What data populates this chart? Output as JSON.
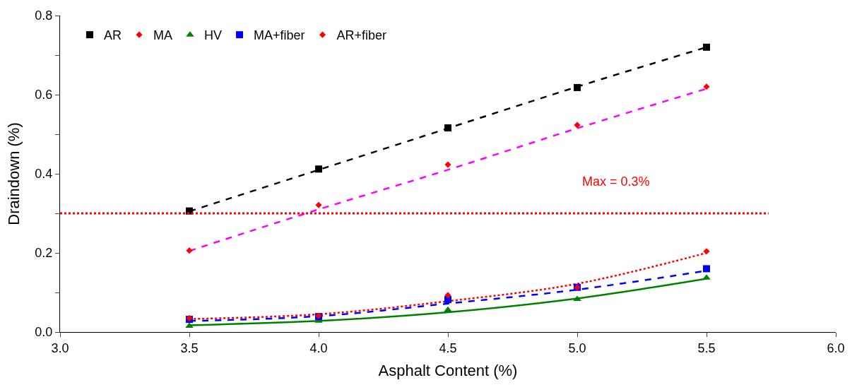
{
  "chart_data": {
    "type": "scatter",
    "xlabel": "Asphalt Content (%)",
    "ylabel": "Draindown (%)",
    "xlim": [
      3.0,
      6.0
    ],
    "ylim": [
      0,
      0.8
    ],
    "xticks": [
      {
        "value": 3.0,
        "label": "3.0"
      },
      {
        "value": 3.5,
        "label": "3.5"
      },
      {
        "value": 4.0,
        "label": "4.0"
      },
      {
        "value": 4.5,
        "label": "4.5"
      },
      {
        "value": 5.0,
        "label": "5.0"
      },
      {
        "value": 5.5,
        "label": "5.5"
      },
      {
        "value": 6.0,
        "label": "6.0"
      }
    ],
    "yticks": [
      {
        "value": 0,
        "label": "0.0"
      },
      {
        "value": 0.1,
        "label": null
      },
      {
        "value": 0.2,
        "label": "0.2"
      },
      {
        "value": 0.3,
        "label": null
      },
      {
        "value": 0.4,
        "label": "0.4"
      },
      {
        "value": 0.5,
        "label": null
      },
      {
        "value": 0.6,
        "label": "0.6"
      },
      {
        "value": 0.7,
        "label": null
      },
      {
        "value": 0.8,
        "label": "0.8"
      }
    ],
    "x": [
      3.5,
      4.0,
      4.5,
      5.0,
      5.5
    ],
    "legend": "top left",
    "series": [
      {
        "name": "AR",
        "color": "#000000",
        "marker": "square",
        "values": [
          0.306,
          0.412,
          0.516,
          0.618,
          0.72
        ]
      },
      {
        "name": "MA",
        "color": "#ff0000",
        "marker": "diamond",
        "values": [
          0.206,
          0.321,
          0.423,
          0.523,
          0.62
        ]
      },
      {
        "name": "HV",
        "color": "#008000",
        "marker": "triangle",
        "values": [
          0.015,
          0.028,
          0.056,
          0.083,
          0.137
        ]
      },
      {
        "name": "MA+fiber",
        "color": "#0000ff",
        "marker": "square",
        "values": [
          0.032,
          0.039,
          0.082,
          0.113,
          0.16
        ]
      },
      {
        "name": "AR+fiber",
        "color": "#ff0000",
        "marker": "diamond",
        "values": [
          0.035,
          0.041,
          0.093,
          0.113,
          0.204
        ]
      },
      {
        "type": "line",
        "color": "#000000",
        "line_style": "dashed",
        "values": [
          0.305,
          0.41,
          0.515,
          0.62,
          0.72
        ]
      },
      {
        "type": "line",
        "color": "#ff00ff",
        "line_style": "dashed",
        "values": [
          0.205,
          0.31,
          0.41,
          0.515,
          0.615
        ]
      },
      {
        "type": "line",
        "color": "#008000",
        "line_style": "solid",
        "values": [
          0.017,
          0.028,
          0.05,
          0.085,
          0.135
        ]
      },
      {
        "type": "line",
        "color": "#0000ff",
        "line_style": "dashed",
        "values": [
          0.028,
          0.04,
          0.072,
          0.107,
          0.155
        ]
      },
      {
        "type": "line",
        "color": "#ff0000",
        "line_style": "dotted",
        "values": [
          0.033,
          0.045,
          0.078,
          0.122,
          0.2
        ]
      }
    ],
    "ref_lines": [
      {
        "axis": "y",
        "value": 0.3,
        "label": "Max = 0.3%",
        "color": "#ff0000",
        "line_style": "dotted"
      }
    ]
  }
}
